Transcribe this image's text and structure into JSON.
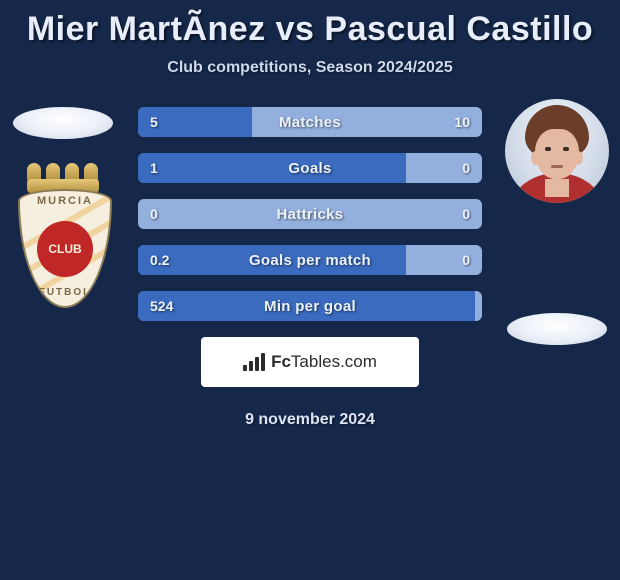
{
  "title": "Mier MartÃ­nez vs Pascual Castillo",
  "subtitle": "Club competitions, Season 2024/2025",
  "date": "9 november 2024",
  "brand": {
    "prefix": "Fc",
    "suffix": "Tables.com"
  },
  "colors": {
    "background": "#16284a",
    "bar_track": "#93afdd",
    "bar_fill": "#3a6bbf",
    "text_light": "#edf2fa"
  },
  "left": {
    "badge": {
      "top_text": "MURCIA",
      "center_text": "CLUB",
      "bottom_text": "FUTBOL"
    }
  },
  "stats": {
    "rows": [
      {
        "label": "Matches",
        "left": "5",
        "right": "10",
        "fill_pct": 33
      },
      {
        "label": "Goals",
        "left": "1",
        "right": "0",
        "fill_pct": 78
      },
      {
        "label": "Hattricks",
        "left": "0",
        "right": "0",
        "fill_pct": 0
      },
      {
        "label": "Goals per match",
        "left": "0.2",
        "right": "0",
        "fill_pct": 78
      },
      {
        "label": "Min per goal",
        "left": "524",
        "right": "",
        "fill_pct": 98
      }
    ]
  }
}
